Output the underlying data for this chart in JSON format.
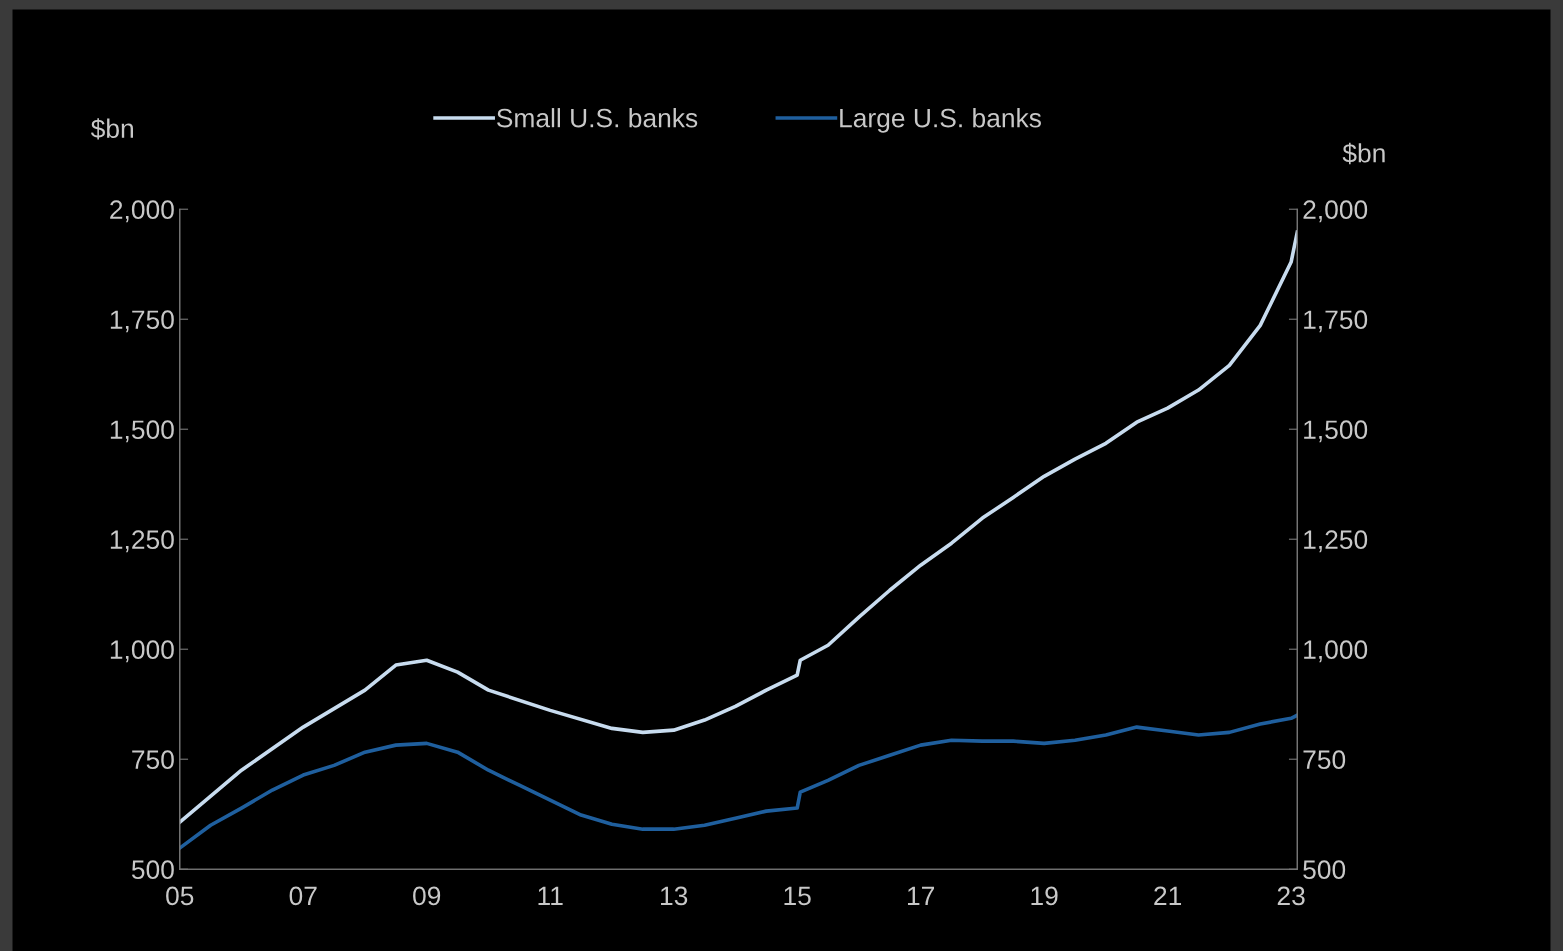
{
  "chart_data": {
    "type": "line",
    "ylabel": "$bn",
    "y2label": "$bn",
    "xlim": [
      2005,
      2023.1
    ],
    "xticks": [
      {
        "value": 2005,
        "label": "05"
      },
      {
        "value": 2007,
        "label": "07"
      },
      {
        "value": 2009,
        "label": "09"
      },
      {
        "value": 2011,
        "label": "11"
      },
      {
        "value": 2013,
        "label": "13"
      },
      {
        "value": 2015,
        "label": "15"
      },
      {
        "value": 2017,
        "label": "17"
      },
      {
        "value": 2019,
        "label": "19"
      },
      {
        "value": 2021,
        "label": "21"
      },
      {
        "value": 2023,
        "label": "23"
      }
    ],
    "ylim": [
      500,
      2000
    ],
    "yticks": [
      {
        "value": 500,
        "label": "500"
      },
      {
        "value": 750,
        "label": "750"
      },
      {
        "value": 1000,
        "label": "1,000"
      },
      {
        "value": 1250,
        "label": "1,250"
      },
      {
        "value": 1500,
        "label": "1,500"
      },
      {
        "value": 1750,
        "label": "1,750"
      },
      {
        "value": 2000,
        "label": "2,000"
      }
    ],
    "y2lim": [
      500,
      2000
    ],
    "y2ticks": [
      {
        "value": 500,
        "label": "500"
      },
      {
        "value": 750,
        "label": "750"
      },
      {
        "value": 1000,
        "label": "1,000"
      },
      {
        "value": 1250,
        "label": "1,250"
      },
      {
        "value": 1500,
        "label": "1,500"
      },
      {
        "value": 1750,
        "label": "1,750"
      },
      {
        "value": 2000,
        "label": "2,000"
      }
    ],
    "legend": "top",
    "grid": false,
    "marker": "none",
    "line_style": "solid",
    "series": [
      {
        "name": "Small U.S. banks",
        "color": "#c8dcef",
        "x": [
          2005,
          2006,
          2007,
          2008,
          2008.5,
          2009,
          2009.5,
          2010,
          2011,
          2012,
          2012.5,
          2013,
          2013.5,
          2014,
          2014.5,
          2015,
          2015.05,
          2015.5,
          2016,
          2016.5,
          2017,
          2017.5,
          2018,
          2018.5,
          2019,
          2019.5,
          2020,
          2020.5,
          2021,
          2021.5,
          2022,
          2022.5,
          2023,
          2023.1
        ],
        "values": [
          607,
          725,
          823,
          907,
          964,
          975,
          948,
          907,
          861,
          820,
          811,
          816,
          839,
          870,
          907,
          941,
          975,
          1009,
          1073,
          1134,
          1191,
          1241,
          1298,
          1345,
          1393,
          1432,
          1468,
          1516,
          1548,
          1589,
          1645,
          1736,
          1880,
          1948
        ]
      },
      {
        "name": "Large U.S. banks",
        "color": "#1f5f9e",
        "x": [
          2005,
          2005.5,
          2006,
          2006.5,
          2007,
          2007.5,
          2008,
          2008.5,
          2009,
          2009.5,
          2010,
          2010.5,
          2011,
          2011.5,
          2012,
          2012.5,
          2013,
          2013.5,
          2014,
          2014.5,
          2015,
          2015.05,
          2015.5,
          2016,
          2016.5,
          2017,
          2017.5,
          2018,
          2018.5,
          2019,
          2019.5,
          2020,
          2020.5,
          2021,
          2021.5,
          2022,
          2022.5,
          2023,
          2023.1
        ],
        "values": [
          548,
          600,
          639,
          680,
          714,
          736,
          766,
          782,
          786,
          766,
          725,
          691,
          657,
          623,
          602,
          591,
          591,
          600,
          616,
          632,
          639,
          675,
          702,
          736,
          759,
          782,
          793,
          791,
          791,
          786,
          793,
          805,
          823,
          814,
          805,
          811,
          830,
          843,
          850
        ]
      }
    ]
  }
}
